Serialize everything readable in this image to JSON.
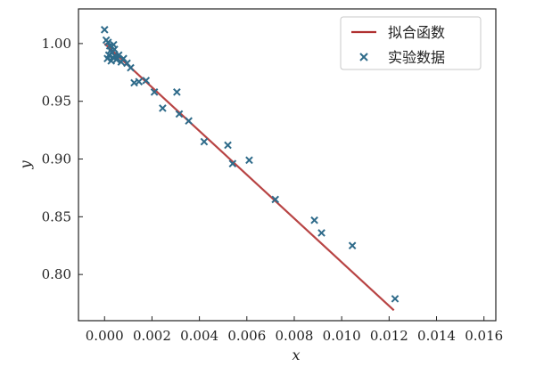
{
  "chart_data": {
    "type": "scatter",
    "xlabel": "x",
    "ylabel": "y",
    "xlim": [
      -0.0011,
      0.0165
    ],
    "ylim": [
      0.76,
      1.03
    ],
    "xticks": [
      0.0,
      0.002,
      0.004,
      0.006,
      0.008,
      0.01,
      0.012,
      0.014,
      0.016
    ],
    "xtick_labels": [
      "0.000",
      "0.002",
      "0.004",
      "0.006",
      "0.008",
      "0.010",
      "0.012",
      "0.014",
      "0.016"
    ],
    "yticks": [
      0.8,
      0.85,
      0.9,
      0.95,
      1.0
    ],
    "ytick_labels": [
      "0.80",
      "0.85",
      "0.90",
      "0.95",
      "1.00"
    ],
    "legend_position": "top-right",
    "grid": false,
    "series": [
      {
        "name": "拟合函数",
        "kind": "line",
        "color": "#b03030",
        "x": [
          0.0,
          0.0122
        ],
        "y": [
          1.0,
          0.769
        ]
      },
      {
        "name": "实验数据",
        "kind": "scatter",
        "marker": "x",
        "color": "#2f6b8a",
        "x": [
          0.0,
          7e-05,
          0.00012,
          0.00015,
          0.00018,
          0.00022,
          0.00025,
          0.00028,
          0.00032,
          0.00035,
          0.00038,
          0.00042,
          0.00045,
          0.0005,
          0.0006,
          0.0007,
          0.0008,
          0.00095,
          0.0011,
          0.00125,
          0.00145,
          0.00175,
          0.0021,
          0.00245,
          0.00305,
          0.00315,
          0.00355,
          0.0042,
          0.0052,
          0.0054,
          0.0061,
          0.0072,
          0.00885,
          0.00915,
          0.01045,
          0.01225
        ],
        "y": [
          1.012,
          1.003,
          0.987,
          1.001,
          0.99,
          0.998,
          0.994,
          0.985,
          0.992,
          0.988,
          0.999,
          0.995,
          0.989,
          0.986,
          0.99,
          0.984,
          0.987,
          0.983,
          0.979,
          0.966,
          0.967,
          0.968,
          0.958,
          0.944,
          0.958,
          0.939,
          0.933,
          0.915,
          0.912,
          0.896,
          0.899,
          0.865,
          0.847,
          0.836,
          0.825,
          0.779
        ]
      }
    ]
  }
}
